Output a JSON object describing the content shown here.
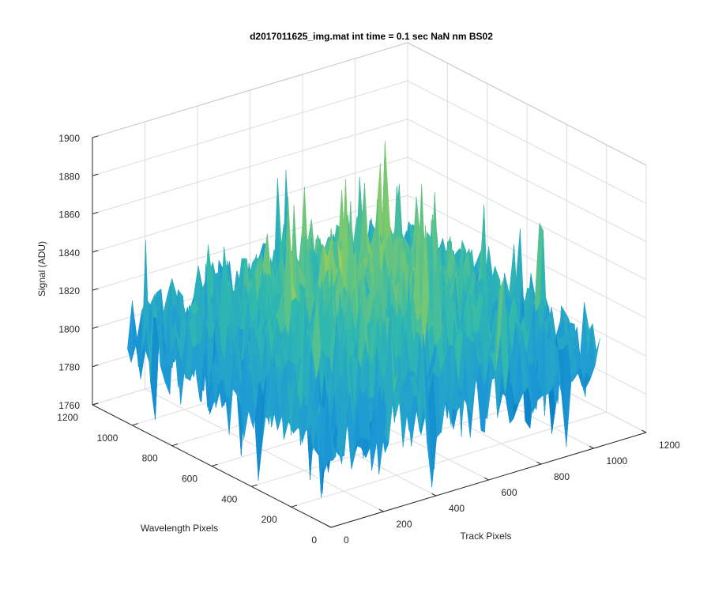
{
  "chart_data": {
    "type": "surface",
    "title": "d2017011625_img.mat int time = 0.1 sec  NaN nm BS02",
    "xlabel": "Track Pixels",
    "ylabel": "Wavelength Pixels",
    "zlabel": "Signal (ADU)",
    "xlim": [
      0,
      1200
    ],
    "ylim": [
      0,
      1200
    ],
    "zlim": [
      1760,
      1900
    ],
    "x_ticks": [
      0,
      200,
      400,
      600,
      800,
      1000,
      1200
    ],
    "y_ticks": [
      0,
      200,
      400,
      600,
      800,
      1000,
      1200
    ],
    "z_ticks": [
      1760,
      1780,
      1800,
      1820,
      1840,
      1860,
      1880,
      1900
    ],
    "x_tick_labels": [
      "0",
      "200",
      "400",
      "600",
      "800",
      "1000",
      "1200"
    ],
    "y_tick_labels": [
      "0",
      "200",
      "400",
      "600",
      "800",
      "1000",
      "1200"
    ],
    "z_tick_labels": [
      "1760",
      "1780",
      "1800",
      "1820",
      "1840",
      "1860",
      "1880",
      "1900"
    ],
    "grid": true,
    "colormap": [
      "#0072bd",
      "#1f9ad6",
      "#2fb8b0",
      "#7cc96d",
      "#d2d33b"
    ],
    "surface_summary": {
      "x_range": [
        0,
        1024
      ],
      "y_range": [
        0,
        1024
      ],
      "center_mean": 1840,
      "edge_mean": 1805,
      "noise_amplitude": 25,
      "min_value": 1765,
      "max_value": 1895
    }
  }
}
